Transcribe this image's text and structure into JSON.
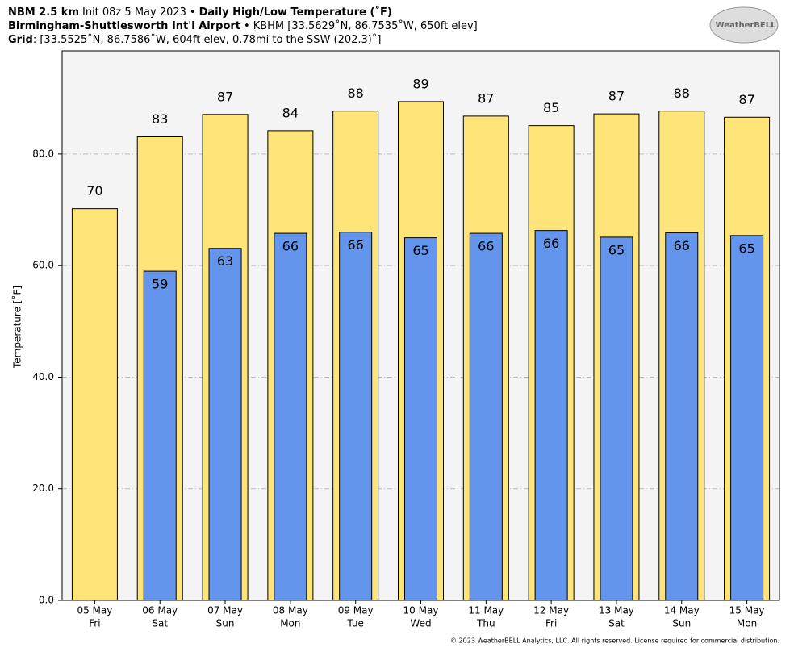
{
  "chart_data": {
    "type": "bar",
    "title_lines": [
      [
        {
          "text": "NBM 2.5 km",
          "bold": true
        },
        {
          "text": "Init 08z 5 May 2023",
          "bold": false
        },
        {
          "text": "•",
          "bold": false
        },
        {
          "text": "Daily High/Low Temperature (˚F)",
          "bold": true
        }
      ],
      [
        {
          "text": "Birmingham-Shuttlesworth Int'l Airport",
          "bold": true
        },
        {
          "text": "•",
          "bold": false
        },
        {
          "text": "KBHM [33.5629˚N, 86.7535˚W, 650ft elev]",
          "bold": false
        }
      ],
      [
        {
          "text": "Grid",
          "bold": true
        },
        {
          "text": ": [33.5525˚N, 86.7586˚W, 604ft elev, 0.78mi to the SSW (202.3)˚]",
          "bold": false
        }
      ]
    ],
    "logo": "WeatherBELL",
    "footer": "© 2023 WeatherBELL Analytics, LLC. All rights reserved. License required for commercial distribution.",
    "ylabel": "Temperature [˚F]",
    "categories": [
      [
        "05 May",
        "Fri"
      ],
      [
        "06 May",
        "Sat"
      ],
      [
        "07 May",
        "Sun"
      ],
      [
        "08 May",
        "Mon"
      ],
      [
        "09 May",
        "Tue"
      ],
      [
        "10 May",
        "Wed"
      ],
      [
        "11 May",
        "Thu"
      ],
      [
        "12 May",
        "Fri"
      ],
      [
        "13 May",
        "Sat"
      ],
      [
        "14 May",
        "Sun"
      ],
      [
        "15 May",
        "Mon"
      ]
    ],
    "series": [
      {
        "color": "#ffe47a",
        "values": [
          70.2,
          83.1,
          87.1,
          84.2,
          87.7,
          89.4,
          86.8,
          85.1,
          87.2,
          87.7,
          86.6
        ],
        "value_labels": [
          "70",
          "83",
          "87",
          "84",
          "88",
          "89",
          "87",
          "85",
          "87",
          "88",
          "87"
        ]
      },
      {
        "color": "#6495ed",
        "values": [
          null,
          59.0,
          63.1,
          65.8,
          66.0,
          65.0,
          65.8,
          66.3,
          65.1,
          65.9,
          65.4
        ],
        "value_labels": [
          null,
          "59",
          "63",
          "66",
          "66",
          "65",
          "66",
          "66",
          "65",
          "66",
          "65"
        ]
      }
    ],
    "ylim": [
      0,
      98.5
    ],
    "yticks": [
      {
        "value": 0,
        "label": "0.0"
      },
      {
        "value": 20,
        "label": "20.0"
      },
      {
        "value": 40,
        "label": "40.0"
      },
      {
        "value": 60,
        "label": "60.0"
      },
      {
        "value": 80,
        "label": "80.0"
      }
    ],
    "grid": true,
    "plot_background": "#f4f4f4"
  }
}
